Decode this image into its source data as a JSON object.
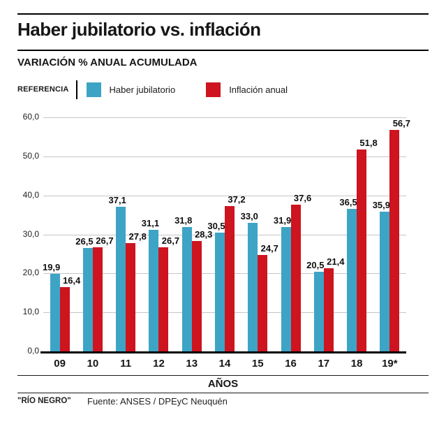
{
  "header": {
    "title": "Haber jubilatorio vs. inflación",
    "subtitle": "VARIACIÓN % ANUAL ACUMULADA"
  },
  "legend": {
    "title": "REFERENCIA",
    "items": [
      {
        "label": "Haber jubilatorio",
        "color": "#3da4c6"
      },
      {
        "label": "Inflación anual",
        "color": "#cd141f"
      }
    ]
  },
  "chart_data": {
    "type": "bar",
    "title": "Haber jubilatorio vs. inflación",
    "subtitle": "VARIACIÓN % ANUAL ACUMULADA",
    "categories": [
      "09",
      "10",
      "11",
      "12",
      "13",
      "14",
      "15",
      "16",
      "17",
      "18",
      "19*"
    ],
    "series": [
      {
        "name": "Haber jubilatorio",
        "color": "#3da4c6",
        "values": [
          19.9,
          26.5,
          37.1,
          31.1,
          31.8,
          30.5,
          33.0,
          31.9,
          20.5,
          36.5,
          35.9
        ]
      },
      {
        "name": "Inflación anual",
        "color": "#cd141f",
        "values": [
          16.4,
          26.7,
          27.8,
          26.7,
          28.3,
          37.2,
          24.7,
          37.6,
          21.4,
          51.8,
          56.7
        ]
      }
    ],
    "xlabel": "AÑOS",
    "ylabel": "",
    "ylim": [
      0,
      60
    ],
    "y_ticks": [
      "60,0",
      "50,0",
      "40,0",
      "30,0",
      "20,0",
      "10,0",
      "0,0"
    ],
    "y_tick_values": [
      60,
      50,
      40,
      30,
      20,
      10,
      0
    ],
    "grid": true,
    "legend_position": "top",
    "decimal_separator": ","
  },
  "footer": {
    "credit": "\"RÍO NEGRO\"",
    "source": "Fuente: ANSES / DPEyC Neuquén"
  }
}
